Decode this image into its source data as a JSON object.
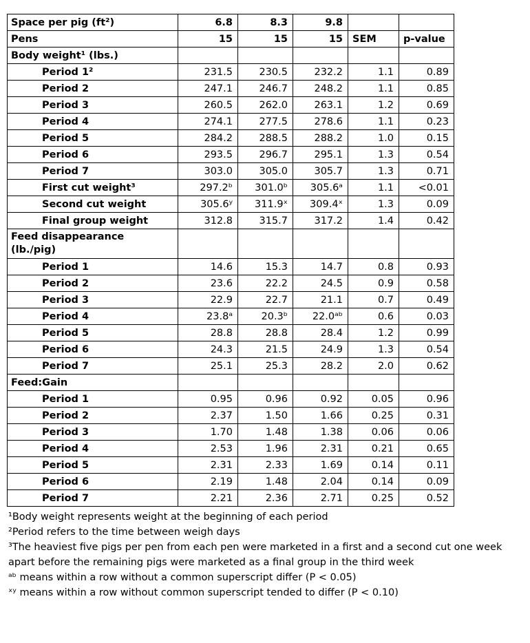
{
  "table": {
    "columns": [
      "row label",
      "6.8",
      "8.3",
      "9.8",
      "SEM",
      "p-value"
    ],
    "rows": [
      {
        "type": "header1",
        "label": "Space per pig (ft²)",
        "values": [
          "6.8",
          "8.3",
          "9.8",
          "",
          ""
        ]
      },
      {
        "type": "header2",
        "label": "Pens",
        "values": [
          "15",
          "15",
          "15",
          "SEM",
          "p-value"
        ]
      },
      {
        "type": "section",
        "label": "Body weight¹ (lbs.)",
        "values": [
          "",
          "",
          "",
          "",
          ""
        ]
      },
      {
        "type": "data",
        "label": "Period 1²",
        "values": [
          "231.5",
          "230.5",
          "232.2",
          "1.1",
          "0.89"
        ]
      },
      {
        "type": "data",
        "label": "Period 2",
        "values": [
          "247.1",
          "246.7",
          "248.2",
          "1.1",
          "0.85"
        ]
      },
      {
        "type": "data",
        "label": "Period 3",
        "values": [
          "260.5",
          "262.0",
          "263.1",
          "1.2",
          "0.69"
        ]
      },
      {
        "type": "data",
        "label": "Period 4",
        "values": [
          "274.1",
          "277.5",
          "278.6",
          "1.1",
          "0.23"
        ]
      },
      {
        "type": "data",
        "label": "Period 5",
        "values": [
          "284.2",
          "288.5",
          "288.2",
          "1.0",
          "0.15"
        ]
      },
      {
        "type": "data",
        "label": "Period 6",
        "values": [
          "293.5",
          "296.7",
          "295.1",
          "1.3",
          "0.54"
        ]
      },
      {
        "type": "data",
        "label": "Period 7",
        "values": [
          "303.0",
          "305.0",
          "305.7",
          "1.3",
          "0.71"
        ]
      },
      {
        "type": "data",
        "label": "First cut weight³",
        "values": [
          "297.2ᵇ",
          "301.0ᵇ",
          "305.6ᵃ",
          "1.1",
          "<0.01"
        ]
      },
      {
        "type": "data",
        "label": "Second cut weight",
        "values": [
          "305.6ʸ",
          "311.9ˣ",
          "309.4ˣ",
          "1.3",
          "0.09"
        ]
      },
      {
        "type": "data",
        "label": "Final group weight",
        "values": [
          "312.8",
          "315.7",
          "317.2",
          "1.4",
          "0.42"
        ]
      },
      {
        "type": "section2",
        "label": "Feed disappearance\n(lb./pig)",
        "values": [
          "",
          "",
          "",
          "",
          ""
        ]
      },
      {
        "type": "data",
        "label": "Period 1",
        "values": [
          "14.6",
          "15.3",
          "14.7",
          "0.8",
          "0.93"
        ]
      },
      {
        "type": "data",
        "label": "Period 2",
        "values": [
          "23.6",
          "22.2",
          "24.5",
          "0.9",
          "0.58"
        ]
      },
      {
        "type": "data",
        "label": "Period 3",
        "values": [
          "22.9",
          "22.7",
          "21.1",
          "0.7",
          "0.49"
        ]
      },
      {
        "type": "data",
        "label": "Period 4",
        "values": [
          "23.8ᵃ",
          "20.3ᵇ",
          "22.0ᵃᵇ",
          "0.6",
          "0.03"
        ]
      },
      {
        "type": "data",
        "label": "Period 5",
        "values": [
          "28.8",
          "28.8",
          "28.4",
          "1.2",
          "0.99"
        ]
      },
      {
        "type": "data",
        "label": "Period 6",
        "values": [
          "24.3",
          "21.5",
          "24.9",
          "1.3",
          "0.54"
        ]
      },
      {
        "type": "data",
        "label": "Period 7",
        "values": [
          "25.1",
          "25.3",
          "28.2",
          "2.0",
          "0.62"
        ]
      },
      {
        "type": "section",
        "label": "Feed:Gain",
        "values": [
          "",
          "",
          "",
          "",
          ""
        ]
      },
      {
        "type": "data",
        "label": "Period 1",
        "values": [
          "0.95",
          "0.96",
          "0.92",
          "0.05",
          "0.96"
        ]
      },
      {
        "type": "data",
        "label": "Period 2",
        "values": [
          "2.37",
          "1.50",
          "1.66",
          "0.25",
          "0.31"
        ]
      },
      {
        "type": "data",
        "label": "Period 3",
        "values": [
          "1.70",
          "1.48",
          "1.38",
          "0.06",
          "0.06"
        ]
      },
      {
        "type": "data",
        "label": "Period 4",
        "values": [
          "2.53",
          "1.96",
          "2.31",
          "0.21",
          "0.65"
        ]
      },
      {
        "type": "data",
        "label": "Period 5",
        "values": [
          "2.31",
          "2.33",
          "1.69",
          "0.14",
          "0.11"
        ]
      },
      {
        "type": "data",
        "label": "Period 6",
        "values": [
          "2.19",
          "1.48",
          "2.04",
          "0.14",
          "0.09"
        ]
      },
      {
        "type": "data",
        "label": "Period 7",
        "values": [
          "2.21",
          "2.36",
          "2.71",
          "0.25",
          "0.52"
        ]
      }
    ]
  },
  "footnotes": [
    "¹Body weight represents weight at the beginning of each period",
    "²Period refers to the time between weigh days",
    "³The heaviest five pigs per pen from each pen were marketed in a first and a second cut one week apart before the remaining pigs were marketed as a final group in the third week",
    "ᵃᵇ means within a row without a common superscript differ (P < 0.05)",
    "ˣʸ means within a row without common superscript tended to differ (P < 0.10)"
  ]
}
